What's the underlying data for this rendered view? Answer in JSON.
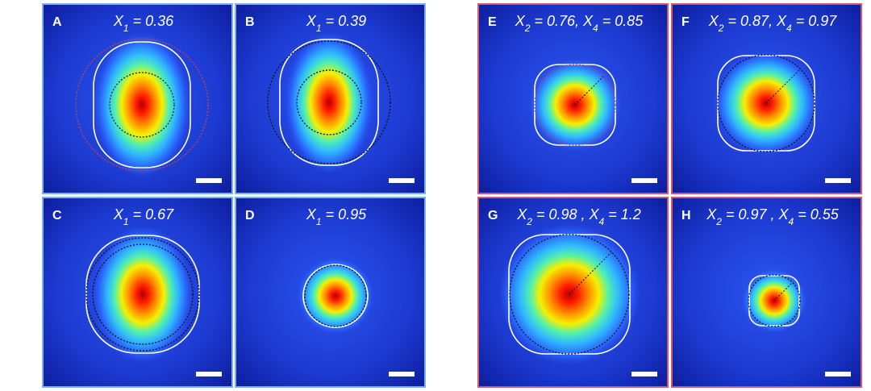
{
  "panels": [
    {
      "letter": "A",
      "terms": [
        {
          "symbol": "X",
          "sub": "1",
          "text": " = 0.36"
        }
      ]
    },
    {
      "letter": "B",
      "terms": [
        {
          "symbol": "X",
          "sub": "1",
          "text": " = 0.39"
        }
      ]
    },
    {
      "letter": "C",
      "terms": [
        {
          "symbol": "X",
          "sub": "1",
          "text": " = 0.67"
        }
      ]
    },
    {
      "letter": "D",
      "terms": [
        {
          "symbol": "X",
          "sub": "1",
          "text": " = 0.95"
        }
      ]
    },
    {
      "letter": "E",
      "terms": [
        {
          "symbol": "X",
          "sub": "2",
          "text": " = 0.76, "
        },
        {
          "symbol": "X",
          "sub": "4",
          "text": " = 0.85"
        }
      ]
    },
    {
      "letter": "F",
      "terms": [
        {
          "symbol": "X",
          "sub": "2",
          "text": " = 0.87, "
        },
        {
          "symbol": "X",
          "sub": "4",
          "text": " = 0.97"
        }
      ]
    },
    {
      "letter": "G",
      "terms": [
        {
          "symbol": "X",
          "sub": "2",
          "text": " = 0.98 , "
        },
        {
          "symbol": "X",
          "sub": "4",
          "text": " = 1.2"
        }
      ]
    },
    {
      "letter": "H",
      "terms": [
        {
          "symbol": "X",
          "sub": "2",
          "text": " = 0.97 , "
        },
        {
          "symbol": "X",
          "sub": "4",
          "text": " = 0.55"
        }
      ]
    }
  ]
}
